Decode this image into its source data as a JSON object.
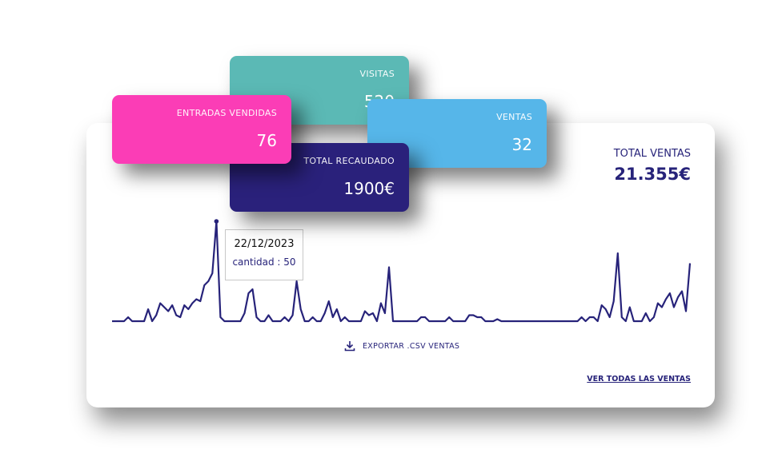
{
  "cards": [
    {
      "label": "VISITAS",
      "value": 520
    },
    {
      "label": "VENTAS",
      "value": 32
    },
    {
      "label": "TOTAL RECAUDADO",
      "value": "1900€"
    },
    {
      "label": "ENTRADAS VENDIDAS",
      "value": 76
    }
  ],
  "total": {
    "label": "TOTAL VENTAS",
    "value": "21.355€"
  },
  "chart_data": {
    "type": "line",
    "color": "#27237a",
    "values": [
      0,
      0,
      0,
      0,
      2,
      0,
      0,
      0,
      0,
      6,
      0,
      3,
      9,
      7,
      5,
      8,
      3,
      2,
      8,
      6,
      9,
      11,
      10,
      18,
      20,
      24,
      50,
      2,
      0,
      0,
      0,
      0,
      0,
      4,
      14,
      16,
      2,
      0,
      0,
      3,
      0,
      0,
      0,
      2,
      0,
      3,
      20,
      6,
      0,
      0,
      2,
      0,
      0,
      4,
      10,
      2,
      6,
      0,
      2,
      0,
      0,
      0,
      0,
      5,
      3,
      4,
      0,
      9,
      4,
      27,
      0,
      0,
      0,
      0,
      0,
      0,
      0,
      2,
      2,
      0,
      0,
      0,
      0,
      0,
      2,
      0,
      0,
      0,
      0,
      3,
      3,
      2,
      2,
      0,
      0,
      0,
      1,
      0,
      0,
      0,
      0,
      0,
      0,
      0,
      0,
      0,
      0,
      0,
      0,
      0,
      0,
      0,
      0,
      0,
      0,
      0,
      0,
      2,
      0,
      2,
      2,
      0,
      8,
      6,
      2,
      10,
      34,
      2,
      0,
      7,
      0,
      0,
      0,
      4,
      0,
      2,
      9,
      7,
      11,
      14,
      7,
      12,
      15,
      5,
      29
    ]
  },
  "tooltip": {
    "date": "22/12/2023",
    "text": "cantidad : 50"
  },
  "export_link": "EXPORTAR .CSV VENTAS",
  "all_sales_link": "VER TODAS LAS VENTAS"
}
